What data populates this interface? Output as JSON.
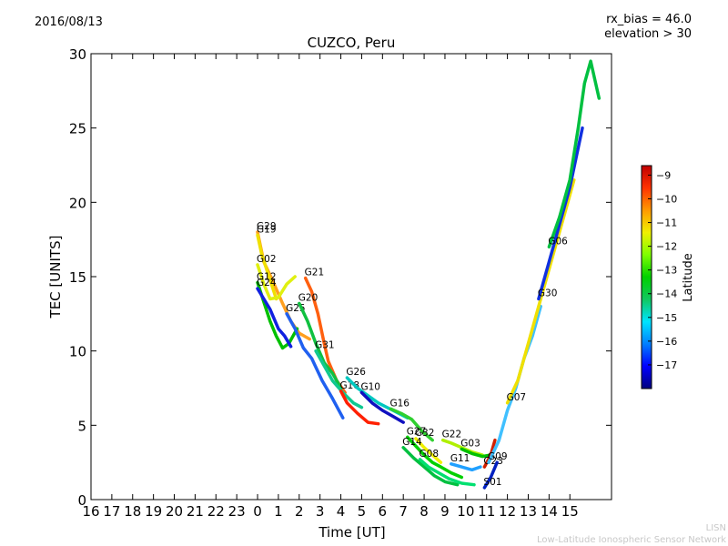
{
  "header": {
    "date": "2016/08/13",
    "rx_bias": "rx_bias = 46.0",
    "elevation": "elevation > 30"
  },
  "footer": {
    "line1": "LISN",
    "line2": "Low-Latitude Ionospheric Sensor Network"
  },
  "chart_data": {
    "type": "scatter",
    "title": "CUZCO, Peru",
    "xlabel": "Time [UT]",
    "ylabel": "TEC [UNITS]",
    "ylim": [
      0,
      30
    ],
    "yticks": [
      0,
      5,
      10,
      15,
      20,
      25,
      30
    ],
    "xlim_hours_relative": [
      -8,
      17
    ],
    "xtick_labels": [
      "16",
      "17",
      "18",
      "19",
      "20",
      "21",
      "22",
      "23",
      "0",
      "1",
      "2",
      "3",
      "4",
      "5",
      "6",
      "7",
      "8",
      "9",
      "10",
      "11",
      "12",
      "13",
      "14",
      "15"
    ],
    "colorbar": {
      "label": "Latitude",
      "range": [
        -18,
        -8.6
      ],
      "ticks": [
        -9,
        -10,
        -11,
        -12,
        -13,
        -14,
        -15,
        -16,
        -17
      ],
      "colormap": [
        "#00007f",
        "#0000ff",
        "#007fff",
        "#00e5ff",
        "#10c860",
        "#00d000",
        "#7fff00",
        "#f0f000",
        "#ff9900",
        "#ff3300",
        "#c00000"
      ]
    },
    "series": [
      {
        "name": "G29",
        "color": "#ffa020",
        "points": [
          [
            0,
            18
          ],
          [
            0.3,
            16
          ],
          [
            0.7,
            14.8
          ],
          [
            1.2,
            13.2
          ],
          [
            1.6,
            12
          ],
          [
            2.0,
            11.2
          ],
          [
            2.5,
            10.8
          ]
        ]
      },
      {
        "name": "G19",
        "color": "#f0e000",
        "points": [
          [
            0,
            17.8
          ],
          [
            0.2,
            16.5
          ],
          [
            0.5,
            15.2
          ],
          [
            0.9,
            13.5
          ]
        ]
      },
      {
        "name": "G02",
        "color": "#e0f010",
        "points": [
          [
            0,
            15.8
          ],
          [
            0.3,
            14.5
          ],
          [
            0.6,
            13.5
          ],
          [
            1.0,
            13.6
          ],
          [
            1.4,
            14.5
          ],
          [
            1.8,
            15
          ]
        ]
      },
      {
        "name": "G12",
        "color": "#00c000",
        "points": [
          [
            0,
            14.6
          ],
          [
            0.3,
            13.3
          ],
          [
            0.6,
            12
          ],
          [
            0.9,
            11
          ],
          [
            1.2,
            10.2
          ],
          [
            1.5,
            10.5
          ],
          [
            1.9,
            11.5
          ]
        ]
      },
      {
        "name": "G24",
        "color": "#1020e0",
        "points": [
          [
            0,
            14.2
          ],
          [
            0.3,
            13.5
          ],
          [
            0.6,
            12.8
          ],
          [
            1.0,
            11.5
          ],
          [
            1.3,
            11
          ],
          [
            1.6,
            10.3
          ]
        ]
      },
      {
        "name": "G25",
        "color": "#2060f0",
        "points": [
          [
            1.4,
            12.5
          ],
          [
            1.8,
            11.5
          ],
          [
            2.2,
            10.2
          ],
          [
            2.6,
            9.5
          ],
          [
            3.1,
            8
          ],
          [
            3.6,
            6.8
          ],
          [
            4.1,
            5.5
          ]
        ]
      },
      {
        "name": "G21",
        "color": "#ff6010",
        "points": [
          [
            2.3,
            14.9
          ],
          [
            2.6,
            14
          ],
          [
            2.9,
            12.5
          ],
          [
            3.2,
            10.5
          ],
          [
            3.4,
            9.3
          ],
          [
            3.8,
            8
          ],
          [
            4.2,
            7.2
          ]
        ]
      },
      {
        "name": "G20",
        "color": "#10c040",
        "points": [
          [
            2.0,
            13.2
          ],
          [
            2.4,
            12
          ],
          [
            2.8,
            10.5
          ],
          [
            3.2,
            9.2
          ],
          [
            3.6,
            8.5
          ],
          [
            4.0,
            7.5
          ]
        ]
      },
      {
        "name": "G31",
        "color": "#10c890",
        "points": [
          [
            2.8,
            10
          ],
          [
            3.2,
            9
          ],
          [
            3.6,
            8
          ],
          [
            4.1,
            7.2
          ],
          [
            4.6,
            6.5
          ],
          [
            5.0,
            6.2
          ]
        ]
      },
      {
        "name": "G18",
        "color": "#ff2000",
        "points": [
          [
            4.0,
            7.3
          ],
          [
            4.3,
            6.5
          ],
          [
            4.8,
            5.8
          ],
          [
            5.3,
            5.2
          ],
          [
            5.8,
            5.1
          ]
        ]
      },
      {
        "name": "G26",
        "color": "#00c8c0",
        "points": [
          [
            4.3,
            8.2
          ],
          [
            4.8,
            7.5
          ],
          [
            5.3,
            7
          ],
          [
            5.8,
            6.5
          ],
          [
            6.5,
            6
          ],
          [
            7.2,
            5.5
          ]
        ]
      },
      {
        "name": "G10",
        "color": "#1010c0",
        "points": [
          [
            5.0,
            7.2
          ],
          [
            5.5,
            6.5
          ],
          [
            6.0,
            6
          ],
          [
            6.5,
            5.6
          ],
          [
            7.0,
            5.2
          ]
        ]
      },
      {
        "name": "G16",
        "color": "#30d030",
        "points": [
          [
            6.4,
            6.1
          ],
          [
            6.9,
            5.8
          ],
          [
            7.4,
            5.4
          ],
          [
            7.9,
            4.6
          ],
          [
            8.4,
            4
          ]
        ]
      },
      {
        "name": "G27",
        "color": "#00d000",
        "points": [
          [
            7.2,
            4.2
          ],
          [
            7.6,
            3.6
          ],
          [
            8.0,
            3
          ],
          [
            8.4,
            2.5
          ],
          [
            8.8,
            2.2
          ],
          [
            9.3,
            1.8
          ],
          [
            9.8,
            1.5
          ]
        ]
      },
      {
        "name": "G32",
        "color": "#f0f000",
        "points": [
          [
            7.6,
            4.1
          ],
          [
            8.0,
            3.5
          ],
          [
            8.4,
            3
          ],
          [
            8.8,
            2.5
          ]
        ]
      },
      {
        "name": "G14",
        "color": "#00c040",
        "points": [
          [
            7.0,
            3.5
          ],
          [
            7.5,
            2.8
          ],
          [
            8.0,
            2.2
          ],
          [
            8.5,
            1.6
          ],
          [
            9.0,
            1.2
          ],
          [
            9.6,
            1
          ]
        ]
      },
      {
        "name": "G08",
        "color": "#00e070",
        "points": [
          [
            7.8,
            2.7
          ],
          [
            8.2,
            2.2
          ],
          [
            8.7,
            1.8
          ],
          [
            9.2,
            1.4
          ],
          [
            9.8,
            1.1
          ],
          [
            10.4,
            1
          ]
        ]
      },
      {
        "name": "G22",
        "color": "#b0f000",
        "points": [
          [
            8.9,
            4
          ],
          [
            9.3,
            3.8
          ],
          [
            9.8,
            3.5
          ],
          [
            10.3,
            3.2
          ],
          [
            10.8,
            3
          ]
        ]
      },
      {
        "name": "G11",
        "color": "#20a0ff",
        "points": [
          [
            9.3,
            2.4
          ],
          [
            9.8,
            2.2
          ],
          [
            10.3,
            2
          ],
          [
            10.7,
            2.2
          ]
        ]
      },
      {
        "name": "G03",
        "color": "#00c000",
        "points": [
          [
            9.8,
            3.4
          ],
          [
            10.3,
            3.1
          ],
          [
            10.8,
            2.9
          ],
          [
            11.2,
            3
          ]
        ]
      },
      {
        "name": "G23",
        "color": "#d02000",
        "points": [
          [
            10.9,
            2.2
          ],
          [
            11.2,
            3
          ],
          [
            11.4,
            4
          ]
        ]
      },
      {
        "name": "S01",
        "color": "#0020c0",
        "points": [
          [
            10.9,
            0.8
          ],
          [
            11.2,
            1.5
          ],
          [
            11.5,
            2.5
          ]
        ]
      },
      {
        "name": "G09",
        "color": "#40c0ff",
        "points": [
          [
            11.1,
            2.5
          ],
          [
            11.6,
            4
          ],
          [
            12.0,
            6
          ],
          [
            12.4,
            7.5
          ],
          [
            12.8,
            9.5
          ],
          [
            13.2,
            11
          ],
          [
            13.6,
            13
          ]
        ]
      },
      {
        "name": "G07",
        "color": "#f0e000",
        "points": [
          [
            12.0,
            6.5
          ],
          [
            12.5,
            8
          ],
          [
            13.0,
            10.5
          ],
          [
            13.5,
            13
          ],
          [
            14.0,
            15.5
          ],
          [
            14.4,
            17.5
          ],
          [
            14.8,
            19.5
          ],
          [
            15.2,
            21.5
          ]
        ]
      },
      {
        "name": "G30",
        "color": "#1030e0",
        "points": [
          [
            13.5,
            13.5
          ],
          [
            14.0,
            16
          ],
          [
            14.5,
            18.5
          ],
          [
            15.0,
            21
          ],
          [
            15.3,
            23
          ],
          [
            15.6,
            25
          ]
        ]
      },
      {
        "name": "G06",
        "color": "#00c040",
        "points": [
          [
            14.0,
            17
          ],
          [
            14.5,
            19
          ],
          [
            15.0,
            21.5
          ],
          [
            15.4,
            25
          ],
          [
            15.7,
            28
          ],
          [
            16.0,
            29.5
          ],
          [
            16.4,
            27
          ]
        ]
      }
    ]
  }
}
